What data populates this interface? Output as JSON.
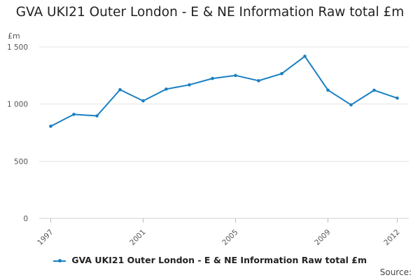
{
  "chart_data": {
    "type": "line",
    "title": "GVA UKI21 Outer London - E & NE Information Raw total £m",
    "ylabel": "£m",
    "xlabel": "",
    "x": [
      1997,
      1998,
      1999,
      2000,
      2001,
      2002,
      2003,
      2004,
      2005,
      2006,
      2007,
      2008,
      2009,
      2010,
      2011,
      2012
    ],
    "series": [
      {
        "name": "GVA UKI21 Outer London - E & NE Information Raw total £m",
        "values": [
          806,
          910,
          897,
          1126,
          1028,
          1131,
          1168,
          1224,
          1250,
          1204,
          1266,
          1418,
          1122,
          993,
          1121,
          1052
        ]
      }
    ],
    "ylim": [
      0,
      1500
    ],
    "yticks": [
      0,
      500,
      1000,
      1500
    ],
    "ytick_labels": [
      "0",
      "500",
      "1 000",
      "1 500"
    ],
    "xticks": [
      1997,
      2001,
      2005,
      2009,
      2012
    ],
    "grid": true,
    "legend_position": "bottom",
    "color": "#1a7fc1"
  },
  "source_label": "Source:"
}
